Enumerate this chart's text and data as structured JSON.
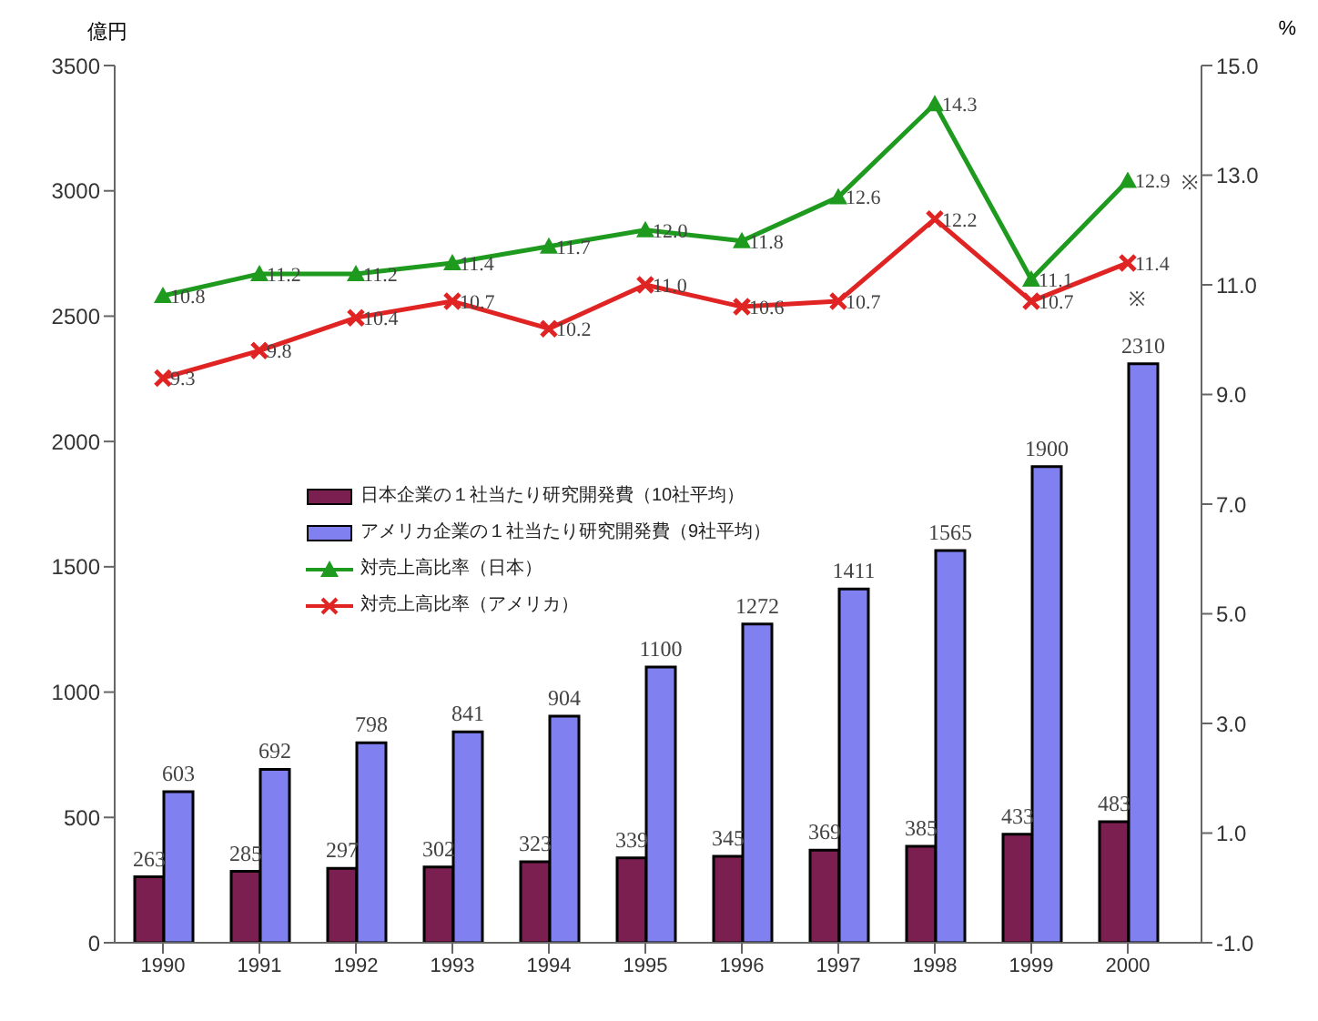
{
  "chart_data": {
    "type": "bar",
    "ylabel": "億円",
    "y2label": "%",
    "categories": [
      "1990",
      "1991",
      "1992",
      "1993",
      "1994",
      "1995",
      "1996",
      "1997",
      "1998",
      "1999",
      "2000"
    ],
    "series": [
      {
        "name": "日本企業の１社当たり研究開発費（10社平均）",
        "color": "#7a1f50",
        "values": [
          263,
          285,
          297,
          302,
          323,
          339,
          345,
          369,
          385,
          433,
          483
        ]
      },
      {
        "name": "アメリカ企業の１社当たり研究開発費（9社平均）",
        "color": "#8080f0",
        "values": [
          603,
          692,
          798,
          841,
          904,
          1100,
          1272,
          1411,
          1565,
          1900,
          2310
        ]
      },
      {
        "type": "line",
        "axis": "y2",
        "marker": "triangle",
        "name": "対売上高比率（日本）",
        "color": "#1e9a1e",
        "values": [
          10.8,
          11.2,
          11.2,
          11.4,
          11.7,
          12.0,
          11.8,
          12.6,
          14.3,
          11.1,
          12.9
        ],
        "value_labels": [
          "10.8",
          "11.2",
          "11.2",
          "11.4",
          "11.7",
          "12.0",
          "11.8",
          "12.6",
          "14.3",
          "11.1",
          "12.9"
        ]
      },
      {
        "type": "line",
        "axis": "y2",
        "marker": "cross",
        "name": "対売上高比率（アメリカ）",
        "color": "#e02424",
        "values": [
          9.3,
          9.8,
          10.4,
          10.7,
          10.2,
          11.0,
          10.6,
          10.7,
          12.2,
          10.7,
          11.4
        ],
        "value_labels": [
          "9.3",
          "9.8",
          "10.4",
          "10.7",
          "10.2",
          "11.0",
          "10.6",
          "10.7",
          "12.2",
          "10.7",
          "11.4"
        ]
      }
    ],
    "ylim": [
      0,
      3500
    ],
    "yticks": [
      0,
      500,
      1000,
      1500,
      2000,
      2500,
      3000,
      3500
    ],
    "y2lim": [
      -1,
      15
    ],
    "y2ticks": [
      {
        "value": -1,
        "label": "-1.0"
      },
      {
        "value": 1,
        "label": "1.0"
      },
      {
        "value": 3,
        "label": "3.0"
      },
      {
        "value": 5,
        "label": "5.0"
      },
      {
        "value": 7,
        "label": "7.0"
      },
      {
        "value": 9,
        "label": "9.0"
      },
      {
        "value": 11,
        "label": "11.0"
      },
      {
        "value": 13,
        "label": "13.0"
      },
      {
        "value": 15,
        "label": "15.0"
      }
    ],
    "annotations": [
      "※",
      "※"
    ],
    "data_labels": true,
    "legend": "left",
    "grid": false
  }
}
